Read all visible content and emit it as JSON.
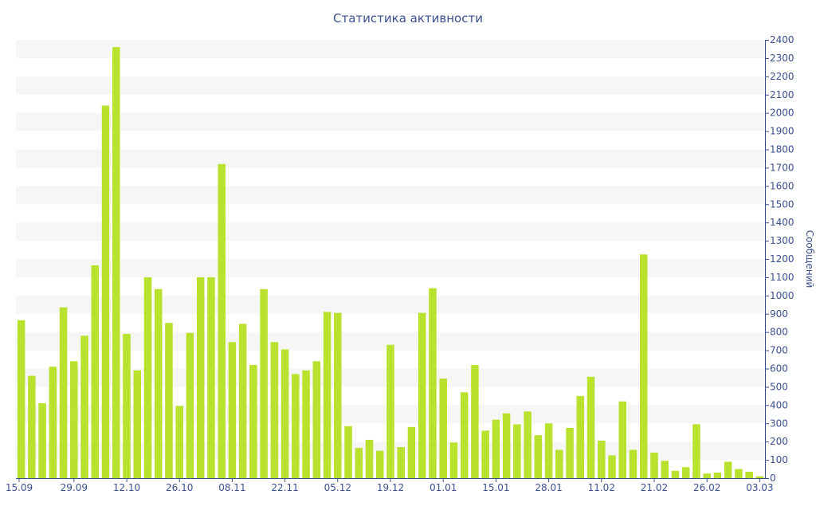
{
  "chart_data": {
    "type": "bar",
    "title": "Статистика активности",
    "ylabel": "Сообщений",
    "xlabel": "",
    "ylim": [
      0,
      2400
    ],
    "y_axis_position": "right",
    "yticks": [
      0,
      100,
      200,
      300,
      400,
      500,
      600,
      700,
      800,
      900,
      1000,
      1100,
      1200,
      1300,
      1400,
      1500,
      1600,
      1700,
      1800,
      1900,
      2000,
      2100,
      2200,
      2300,
      2400
    ],
    "xtick_labels": [
      "15.09",
      "29.09",
      "12.10",
      "26.10",
      "08.11",
      "22.11",
      "05.12",
      "19.12",
      "01.01",
      "15.01",
      "28.01",
      "11.02",
      "21.02",
      "26.02",
      "03.03"
    ],
    "xtick_bar_index": [
      0,
      5,
      10,
      15,
      20,
      25,
      30,
      35,
      40,
      45,
      50,
      55,
      60,
      65,
      70
    ],
    "grid": "alternating horizontal bands",
    "colors": {
      "bar": "#b9e22e",
      "band": "#f6f6f6",
      "text": "#3a4f8f",
      "axis": "#3a4f8f"
    },
    "values": [
      865,
      560,
      410,
      610,
      935,
      640,
      780,
      1165,
      2040,
      2360,
      790,
      590,
      1100,
      1035,
      850,
      395,
      795,
      1100,
      1100,
      1720,
      745,
      845,
      620,
      1035,
      745,
      705,
      570,
      590,
      640,
      910,
      905,
      285,
      165,
      210,
      150,
      730,
      170,
      280,
      905,
      1040,
      545,
      195,
      470,
      620,
      260,
      320,
      355,
      295,
      365,
      235,
      300,
      155,
      275,
      450,
      555,
      205,
      125,
      420,
      155,
      1225,
      140,
      95,
      40,
      60,
      295,
      25,
      30,
      90,
      50,
      35,
      10
    ]
  }
}
